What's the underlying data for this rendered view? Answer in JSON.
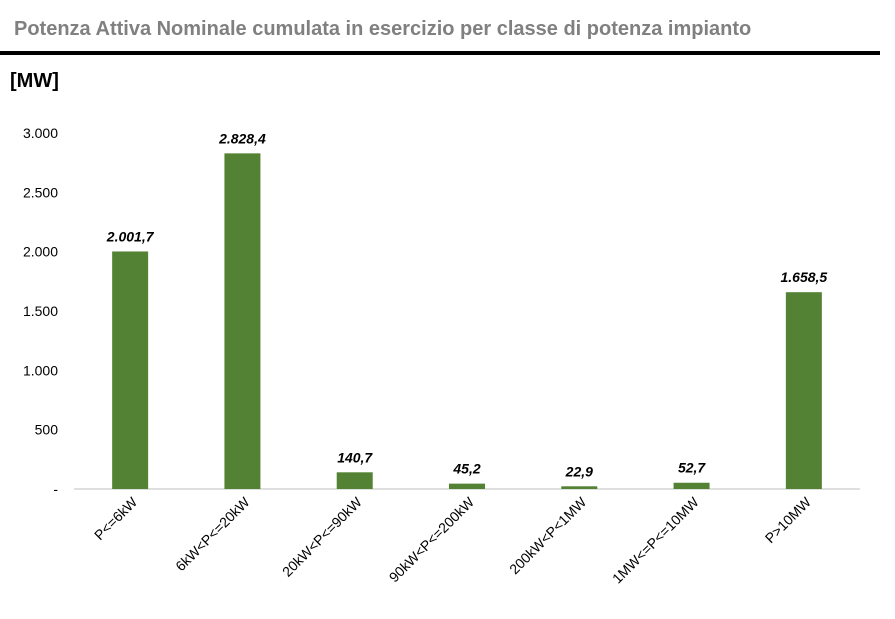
{
  "chart_data": {
    "type": "bar",
    "title": "Potenza Attiva Nominale cumulata in esercizio per classe di potenza impianto",
    "ylabel": "[MW]",
    "xlabel": "",
    "categories": [
      "P<=6kW",
      "6kW<P<=20kW",
      "20kW<P<=90kW",
      "90kW<P<=200kW",
      "200kW<P<1MW",
      "1MW<=P<=10MW",
      "P>10MW"
    ],
    "values": [
      2001.7,
      2828.4,
      140.7,
      45.2,
      22.9,
      52.7,
      1658.5
    ],
    "value_labels": [
      "2.001,7",
      "2.828,4",
      "140,7",
      "45,2",
      "22,9",
      "52,7",
      "1.658,5"
    ],
    "yticks": [
      0,
      500,
      1000,
      1500,
      2000,
      2500,
      3000
    ],
    "ytick_labels": [
      "-",
      "500",
      "1.000",
      "1.500",
      "2.000",
      "2.500",
      "3.000"
    ],
    "ylim": [
      0,
      3000
    ],
    "grid": false,
    "bar_color": "#548235"
  }
}
